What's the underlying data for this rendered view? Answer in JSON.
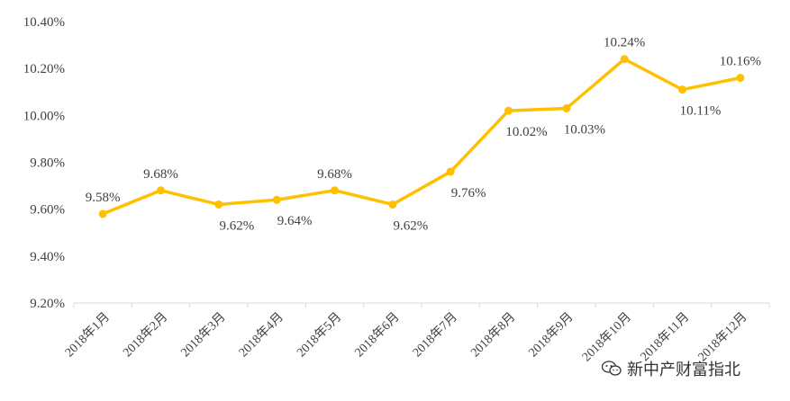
{
  "chart_data": {
    "type": "line",
    "title": "",
    "xlabel": "",
    "ylabel": "",
    "categories": [
      "2018年1月",
      "2018年2月",
      "2018年3月",
      "2018年4月",
      "2018年5月",
      "2018年6月",
      "2018年7月",
      "2018年8月",
      "2018年9月",
      "2018年10月",
      "2018年11月",
      "2018年12月"
    ],
    "series": [
      {
        "values": [
          9.58,
          9.68,
          9.62,
          9.64,
          9.68,
          9.62,
          9.76,
          10.02,
          10.03,
          10.24,
          10.11,
          10.16
        ]
      }
    ],
    "data_labels": [
      "9.58%",
      "9.68%",
      "9.62%",
      "9.64%",
      "9.68%",
      "9.62%",
      "9.76%",
      "10.02%",
      "10.03%",
      "10.24%",
      "10.11%",
      "10.16%"
    ],
    "ylim": [
      9.2,
      10.4
    ],
    "yticks": [
      9.2,
      9.4,
      9.6,
      9.8,
      10.0,
      10.2,
      10.4
    ],
    "ytick_labels": [
      "9.20%",
      "9.40%",
      "9.60%",
      "9.80%",
      "10.00%",
      "10.20%",
      "10.40%"
    ],
    "grid": false,
    "legend": "none",
    "line_color": "#FFC000"
  },
  "watermark": {
    "text": "新中产财富指北",
    "icon": "wechat-icon"
  }
}
